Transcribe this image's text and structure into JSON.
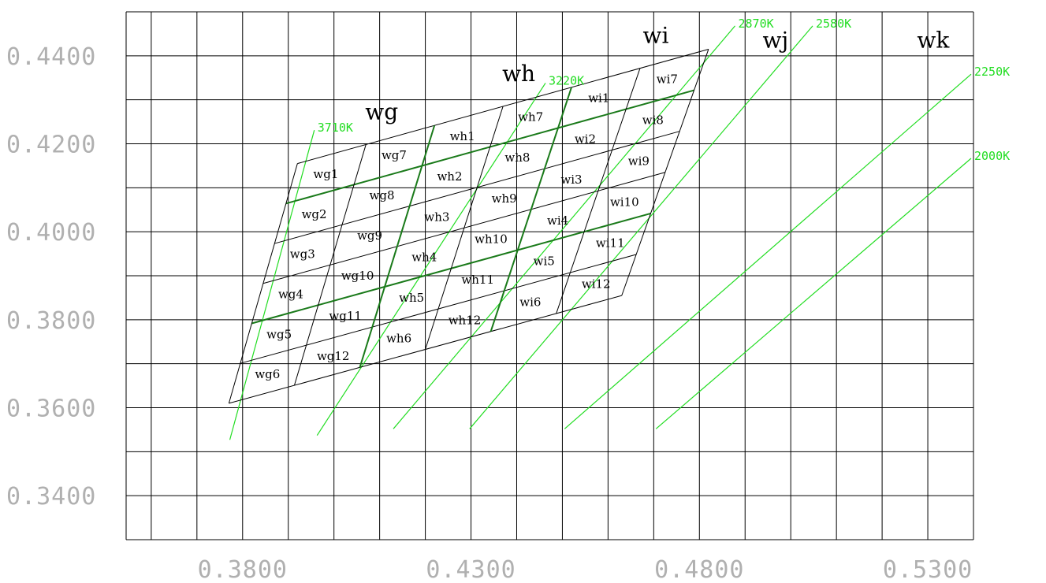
{
  "chart_data": {
    "type": "line",
    "title": "",
    "xlabel": "",
    "ylabel": "",
    "xlim": [
      0.3545,
      0.54
    ],
    "ylim": [
      0.33,
      0.45
    ],
    "x_ticks": [
      {
        "value": 0.38,
        "label": "0.3800"
      },
      {
        "value": 0.43,
        "label": "0.4300"
      },
      {
        "value": 0.48,
        "label": "0.4800"
      },
      {
        "value": 0.53,
        "label": "0.5300"
      }
    ],
    "y_ticks": [
      {
        "value": 0.44,
        "label": "0.4400"
      },
      {
        "value": 0.42,
        "label": "0.4200"
      },
      {
        "value": 0.4,
        "label": "0.4000"
      },
      {
        "value": 0.38,
        "label": "0.3800"
      },
      {
        "value": 0.36,
        "label": "0.3600"
      },
      {
        "value": 0.34,
        "label": "0.3400"
      }
    ],
    "grid": true,
    "cct_lines": [
      {
        "name": "3710K",
        "points": [
          [
            0.3772,
            0.3527
          ],
          [
            0.3957,
            0.4231
          ]
        ]
      },
      {
        "name": "3220K",
        "points": [
          [
            0.3963,
            0.3537
          ],
          [
            0.4463,
            0.4338
          ]
        ]
      },
      {
        "name": "2870K",
        "points": [
          [
            0.413,
            0.3552
          ],
          [
            0.4878,
            0.4468
          ]
        ]
      },
      {
        "name": "2580K",
        "points": [
          [
            0.4297,
            0.3552
          ],
          [
            0.5048,
            0.4468
          ]
        ]
      },
      {
        "name": "2250K",
        "points": [
          [
            0.4505,
            0.3552
          ],
          [
            0.5505,
            0.4458
          ]
        ]
      },
      {
        "name": "2000K",
        "points": [
          [
            0.4705,
            0.3552
          ],
          [
            0.5763,
            0.4495
          ]
        ]
      }
    ],
    "bin_groups": [
      {
        "name": "wg",
        "bins": [
          "wg1",
          "wg2",
          "wg3",
          "wg4",
          "wg5",
          "wg6",
          "wg7",
          "wg8",
          "wg9",
          "wg10",
          "wg11",
          "wg12"
        ]
      },
      {
        "name": "wh",
        "bins": [
          "wh1",
          "wh2",
          "wh3",
          "wh4",
          "wh5",
          "wh6",
          "wh7",
          "wh8",
          "wh9",
          "wh10",
          "wh11",
          "wh12"
        ]
      },
      {
        "name": "wi",
        "bins": [
          "wi1",
          "wi2",
          "wi3",
          "wi4",
          "wi5",
          "wi6",
          "wi7",
          "wi8",
          "wi9",
          "wi10",
          "wi11",
          "wi12"
        ]
      },
      {
        "name": "wj",
        "bins": []
      },
      {
        "name": "wk",
        "bins": []
      }
    ],
    "bin_corners": {
      "bottom_left": [
        0.377,
        0.361
      ],
      "top_left": [
        0.392,
        0.4155
      ],
      "top_right": [
        0.482,
        0.4415
      ],
      "bottom_right": [
        0.463,
        0.3855
      ]
    },
    "columns": 6,
    "rows": 6,
    "thick_rows": [
      2,
      5
    ],
    "thick_columns": [
      2,
      4
    ]
  }
}
